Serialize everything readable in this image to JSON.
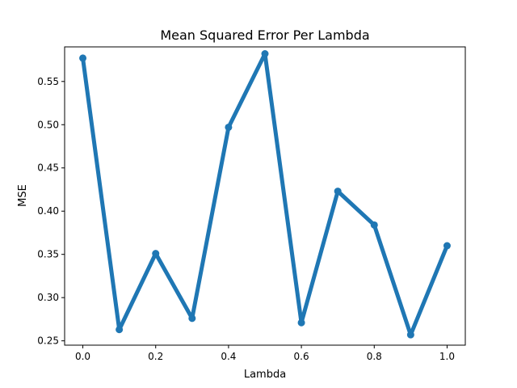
{
  "chart_data": {
    "type": "line",
    "title": "Mean Squared Error Per Lambda",
    "xlabel": "Lambda",
    "ylabel": "MSE",
    "xlim": [
      -0.05,
      1.05
    ],
    "ylim": [
      0.245,
      0.59
    ],
    "x_ticks": [
      "0.0",
      "0.2",
      "0.4",
      "0.6",
      "0.8",
      "1.0"
    ],
    "y_ticks": [
      "0.25",
      "0.30",
      "0.35",
      "0.40",
      "0.45",
      "0.50",
      "0.55"
    ],
    "grid": false,
    "series": [
      {
        "color": "#1f77b4",
        "x": [
          0.0,
          0.1,
          0.2,
          0.3,
          0.4,
          0.5,
          0.6,
          0.7,
          0.8,
          0.9,
          1.0
        ],
        "y": [
          0.577,
          0.263,
          0.351,
          0.276,
          0.497,
          0.582,
          0.271,
          0.423,
          0.384,
          0.257,
          0.36
        ]
      }
    ]
  }
}
